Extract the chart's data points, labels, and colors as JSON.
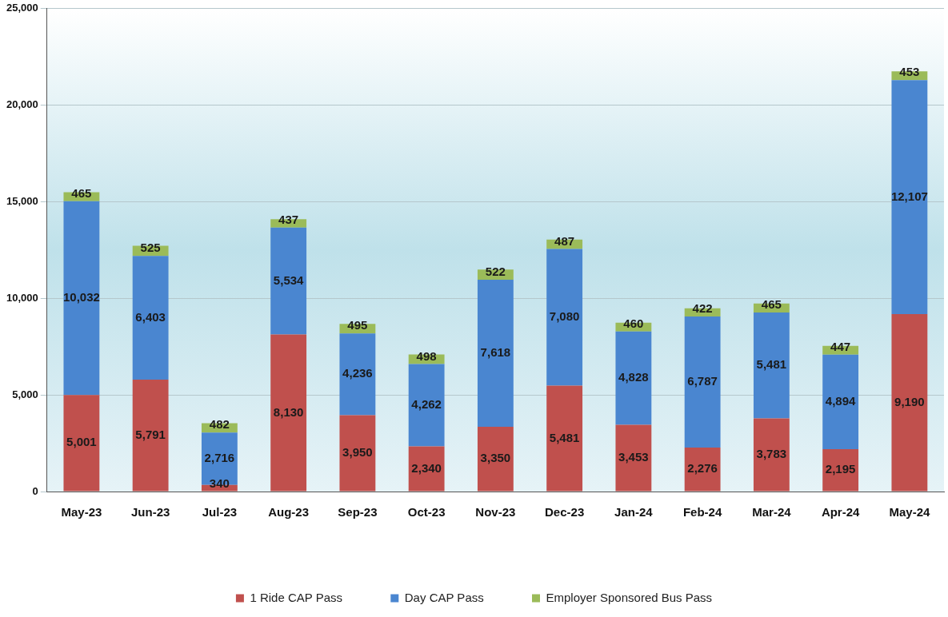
{
  "chart_data": {
    "type": "bar",
    "stacked": true,
    "categories": [
      "May-23",
      "Jun-23",
      "Jul-23",
      "Aug-23",
      "Sep-23",
      "Oct-23",
      "Nov-23",
      "Dec-23",
      "Jan-24",
      "Feb-24",
      "Mar-24",
      "Apr-24",
      "May-24"
    ],
    "series": [
      {
        "name": "1 Ride CAP Pass",
        "color": "#c0504d",
        "values": [
          5001,
          5791,
          340,
          8130,
          3950,
          2340,
          3350,
          5481,
          3453,
          2276,
          3783,
          2195,
          9190
        ],
        "value_labels": [
          "5,001",
          "5,791",
          "340",
          "8,130",
          "3,950",
          "2,340",
          "3,350",
          "5,481",
          "3,453",
          "2,276",
          "3,783",
          "2,195",
          "9,190"
        ]
      },
      {
        "name": "Day CAP Pass",
        "color": "#4a86d0",
        "values": [
          10032,
          6403,
          2716,
          5534,
          4236,
          4262,
          7618,
          7080,
          4828,
          6787,
          5481,
          4894,
          12107
        ],
        "value_labels": [
          "10,032",
          "6,403",
          "2,716",
          "5,534",
          "4,236",
          "4,262",
          "7,618",
          "7,080",
          "4,828",
          "6,787",
          "5,481",
          "4,894",
          "12,107"
        ]
      },
      {
        "name": "Employer Sponsored Bus Pass",
        "color": "#9bbb59",
        "values": [
          465,
          525,
          482,
          437,
          495,
          498,
          522,
          487,
          460,
          422,
          465,
          447,
          453
        ],
        "value_labels": [
          "465",
          "525",
          "482",
          "437",
          "495",
          "498",
          "522",
          "487",
          "460",
          "422",
          "465",
          "447",
          "453"
        ]
      }
    ],
    "ylim": [
      0,
      25000
    ],
    "yticks": [
      0,
      {
        "value": 5000,
        "label": "5,000"
      },
      {
        "value": 10000,
        "label": "10,000"
      },
      {
        "value": 15000,
        "label": "15,000"
      },
      {
        "value": 20000,
        "label": "20,000"
      },
      {
        "value": 25000,
        "label": "25,000"
      }
    ],
    "grid": "y",
    "legend": "bottom"
  }
}
